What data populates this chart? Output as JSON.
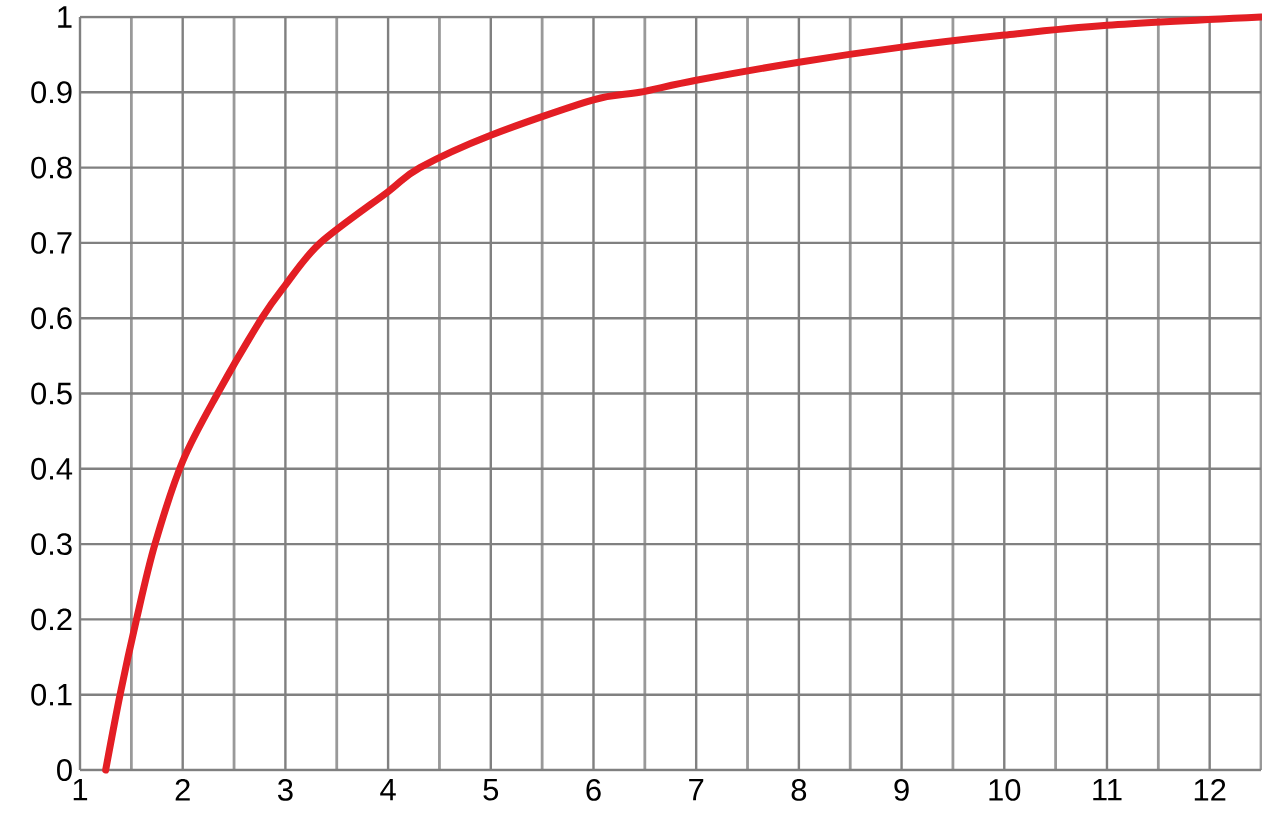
{
  "chart_data": {
    "type": "line",
    "x": [
      1.25,
      1.39,
      1.55,
      1.73,
      2,
      2.34,
      2.77,
      3,
      3.34,
      4,
      4.31,
      5,
      6,
      6.45,
      7,
      8,
      9,
      10,
      11,
      12.5
    ],
    "series": [
      {
        "color": "#e31e24",
        "values": [
          0,
          0.1,
          0.2,
          0.3,
          0.41,
          0.5,
          0.6,
          0.644,
          0.7,
          0.768,
          0.8,
          0.843,
          0.89,
          0.9,
          0.916,
          0.94,
          0.96,
          0.976,
          0.989,
          1.0
        ]
      }
    ],
    "xlim": [
      1,
      12.5
    ],
    "xticks": [
      1,
      {
        "value": 1.5,
        "label": null
      },
      2,
      {
        "value": 2.5,
        "label": null
      },
      3,
      {
        "value": 3.5,
        "label": null
      },
      4,
      {
        "value": 4.5,
        "label": null
      },
      5,
      {
        "value": 5.5,
        "label": null
      },
      6,
      {
        "value": 6.5,
        "label": null
      },
      7,
      {
        "value": 7.5,
        "label": null
      },
      8,
      {
        "value": 8.5,
        "label": null
      },
      9,
      {
        "value": 9.5,
        "label": null
      },
      10,
      {
        "value": 10.5,
        "label": null
      },
      11,
      {
        "value": 11.5,
        "label": null
      },
      12,
      {
        "value": 12.5,
        "label": null
      }
    ],
    "ylim": [
      0,
      1
    ],
    "yticks": [
      0,
      0.1,
      0.2,
      0.3,
      0.4,
      0.5,
      0.6,
      0.7,
      0.8,
      0.9,
      1
    ],
    "grid": true,
    "marker": "none",
    "line_style": "solid"
  }
}
